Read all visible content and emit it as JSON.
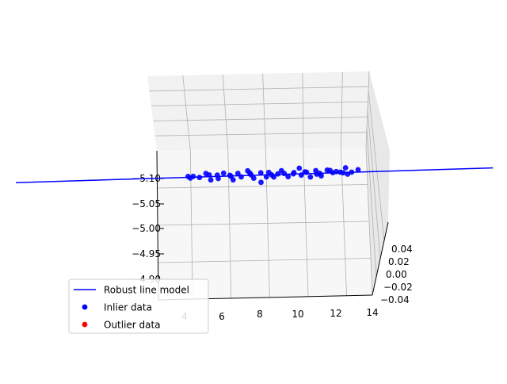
{
  "chart_data": {
    "type": "scatter",
    "title": "",
    "view": "3d",
    "grid": true,
    "legend_placement": "lower-left",
    "colors": {
      "line": "#0000ff",
      "inlier": "#0000ff",
      "outlier": "#ff0000",
      "grid": "#b0b0b0",
      "pane": "#f2f2f2"
    },
    "axes": {
      "x": {
        "range": [
          2,
          14
        ],
        "ticks": [
          "4",
          "6",
          "8",
          "10",
          "12",
          "14"
        ]
      },
      "y": {
        "range": [
          -0.04,
          0.04
        ],
        "ticks": [
          "0.04",
          "0.02",
          "0.00",
          "−0.02",
          "−0.04"
        ]
      },
      "z": {
        "range": [
          -5.1,
          -4.9
        ],
        "ticks": [
          "−5.10",
          "−5.05",
          "−5.00",
          "−4.95",
          "−4.90"
        ]
      }
    },
    "series": [
      {
        "name": "Robust line model",
        "type": "line",
        "x": [
          -5.8,
          22.0
        ]
      },
      {
        "name": "Inlier data",
        "type": "scatter",
        "x": [
          4.2,
          4.6,
          4.9,
          5.2,
          5.6,
          5.9,
          6.1,
          6.3,
          6.6,
          6.9,
          7.1,
          7.4,
          7.6,
          7.9,
          8.1,
          8.4,
          8.6,
          8.9,
          9.1,
          9.3,
          9.6,
          9.8,
          10.1,
          10.4,
          10.6,
          10.9,
          11.1,
          11.4,
          11.6,
          11.9,
          12.1,
          12.3,
          12.6,
          12.9,
          13.1,
          13.3,
          13.6,
          4.4,
          5.4,
          6.8,
          7.8,
          8.8,
          9.5,
          10.3,
          11.0,
          11.8,
          12.5,
          13.2,
          13.8,
          14.1
        ],
        "y": [
          0.01,
          -0.02,
          0.0,
          0.02,
          -0.01,
          0.01,
          -0.03,
          0.0,
          0.02,
          -0.01,
          0.01,
          -0.02,
          0.03,
          0.0,
          -0.01,
          0.02,
          -0.03,
          0.01,
          0.0,
          -0.02,
          0.02,
          0.01,
          -0.01,
          0.0,
          0.03,
          -0.02,
          0.01,
          -0.01,
          0.02,
          0.0,
          -0.03,
          0.01,
          0.02,
          -0.01,
          0.0,
          0.03,
          -0.02,
          -0.01,
          0.02,
          -0.02,
          0.01,
          0.0,
          -0.01,
          0.02,
          0.01,
          -0.02,
          0.0,
          0.02,
          -0.01,
          0.01
        ],
        "z": [
          -5.101,
          -5.103,
          -5.099,
          -5.105,
          -5.094,
          -5.102,
          -5.098,
          -5.106,
          -5.1,
          -5.093,
          -5.104,
          -5.099,
          -5.107,
          -5.101,
          -5.095,
          -5.103,
          -5.088,
          -5.104,
          -5.1,
          -5.097,
          -5.106,
          -5.101,
          -5.096,
          -5.103,
          -5.109,
          -5.099,
          -5.102,
          -5.094,
          -5.104,
          -5.1,
          -5.097,
          -5.105,
          -5.099,
          -5.103,
          -5.101,
          -5.107,
          -5.098,
          -5.099,
          -5.102,
          -5.101,
          -5.104,
          -5.096,
          -5.102,
          -5.099,
          -5.103,
          -5.1,
          -5.105,
          -5.098,
          -5.101,
          -5.104
        ]
      },
      {
        "name": "Outlier data",
        "type": "scatter",
        "x": [],
        "y": [],
        "z": []
      }
    ]
  }
}
